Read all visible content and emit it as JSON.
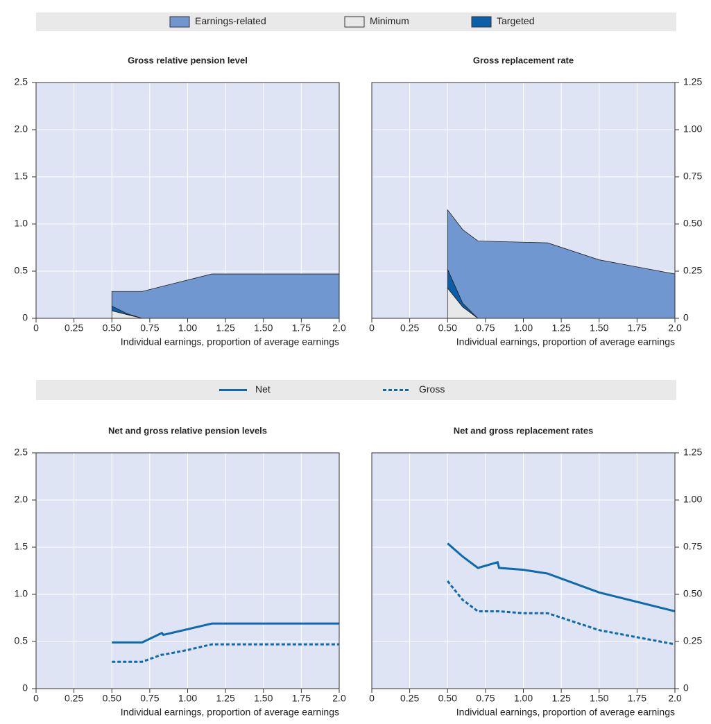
{
  "chart_data": [
    {
      "type": "area",
      "stacked": true,
      "title": "Gross relative pension level",
      "x_label": "Individual earnings, proportion of average earnings",
      "x": [
        0.5,
        0.6,
        0.7,
        1.16,
        1.5,
        2.0
      ],
      "series": [
        {
          "name": "Earnings-related",
          "color": "#7097d0",
          "values": [
            0.155,
            0.235,
            0.285,
            0.47,
            0.47,
            0.47
          ]
        },
        {
          "name": "Minimum",
          "color": "#e8e8e8",
          "values": [
            0.08,
            0.04,
            0,
            0,
            0,
            0
          ]
        },
        {
          "name": "Targeted",
          "color": "#0a5fa8",
          "values": [
            0.05,
            0.01,
            0,
            0,
            0,
            0
          ]
        }
      ],
      "xlim": [
        0,
        2.0
      ],
      "xticks": [
        0,
        0.25,
        {
          "value": 0.5,
          "label": "0.50"
        },
        0.75,
        {
          "value": 1.0,
          "label": "1.00"
        },
        1.25,
        {
          "value": 1.5,
          "label": "1.50"
        },
        1.75,
        {
          "value": 2.0,
          "label": "2.0"
        }
      ],
      "ylim": [
        0,
        2.5
      ],
      "yticks": [
        0,
        0.5,
        {
          "value": 1.0,
          "label": "1.0"
        },
        1.5,
        {
          "value": 2.0,
          "label": "2.0"
        },
        2.5
      ],
      "y_axis_position": "left",
      "grid": true
    },
    {
      "type": "area",
      "stacked": true,
      "title": "Gross replacement rate",
      "x_label": "Individual earnings, proportion of average earnings",
      "x": [
        0.5,
        0.6,
        0.7,
        1.16,
        1.5,
        2.0
      ],
      "series": [
        {
          "name": "Earnings-related",
          "color": "#7097d0",
          "values": [
            0.315,
            0.39,
            0.41,
            0.4,
            0.31,
            0.235
          ]
        },
        {
          "name": "Minimum",
          "color": "#e8e8e8",
          "values": [
            0.16,
            0.06,
            0,
            0,
            0,
            0
          ]
        },
        {
          "name": "Targeted",
          "color": "#0a5fa8",
          "values": [
            0.1,
            0.02,
            0,
            0,
            0,
            0
          ]
        }
      ],
      "xlim": [
        0,
        2.0
      ],
      "xticks": [
        0,
        0.25,
        {
          "value": 0.5,
          "label": "0.50"
        },
        0.75,
        {
          "value": 1.0,
          "label": "1.00"
        },
        1.25,
        {
          "value": 1.5,
          "label": "1.50"
        },
        1.75,
        {
          "value": 2.0,
          "label": "2.0"
        }
      ],
      "ylim": [
        0,
        1.25
      ],
      "yticks": [
        0,
        0.25,
        {
          "value": 0.5,
          "label": "0.50"
        },
        0.75,
        {
          "value": 1.0,
          "label": "1.00"
        },
        1.25
      ],
      "y_axis_position": "right",
      "grid": true
    },
    {
      "type": "line",
      "title": "Net and gross relative pension levels",
      "x_label": "Individual earnings, proportion of average earnings",
      "x": [
        0.5,
        0.7,
        0.83,
        0.84,
        1.0,
        1.16,
        2.0
      ],
      "series": [
        {
          "name": "Net",
          "color": "#0b6ab0",
          "line_style": "solid",
          "values": [
            0.49,
            0.49,
            0.59,
            0.57,
            0.63,
            0.69,
            0.69
          ]
        },
        {
          "name": "Gross",
          "color": "#0b6ab0",
          "line_style": "dashed",
          "values": [
            0.285,
            0.285,
            0.36,
            0.36,
            0.41,
            0.47,
            0.47
          ]
        }
      ],
      "xlim": [
        0,
        2.0
      ],
      "xticks": [
        0,
        0.25,
        {
          "value": 0.5,
          "label": "0.50"
        },
        0.75,
        {
          "value": 1.0,
          "label": "1.00"
        },
        1.25,
        {
          "value": 1.5,
          "label": "1.50"
        },
        1.75,
        {
          "value": 2.0,
          "label": "2.0"
        }
      ],
      "ylim": [
        0,
        2.5
      ],
      "yticks": [
        0,
        0.5,
        {
          "value": 1.0,
          "label": "1.0"
        },
        1.5,
        {
          "value": 2.0,
          "label": "2.0"
        },
        2.5
      ],
      "y_axis_position": "left",
      "grid": true
    },
    {
      "type": "line",
      "title": "Net and gross replacement rates",
      "x_label": "Individual earnings, proportion of average earnings",
      "x": [
        0.5,
        0.6,
        0.7,
        0.83,
        0.84,
        1.0,
        1.16,
        1.5,
        2.0
      ],
      "series": [
        {
          "name": "Net",
          "color": "#0b6ab0",
          "line_style": "solid",
          "values": [
            0.77,
            0.7,
            0.64,
            0.67,
            0.64,
            0.63,
            0.61,
            0.51,
            0.41
          ]
        },
        {
          "name": "Gross",
          "color": "#0b6ab0",
          "line_style": "dashed",
          "values": [
            0.57,
            0.47,
            0.41,
            0.41,
            0.41,
            0.4,
            0.4,
            0.31,
            0.235
          ]
        }
      ],
      "xlim": [
        0,
        2.0
      ],
      "xticks": [
        0,
        0.25,
        {
          "value": 0.5,
          "label": "0.50"
        },
        0.75,
        {
          "value": 1.0,
          "label": "1.00"
        },
        1.25,
        {
          "value": 1.5,
          "label": "1.50"
        },
        1.75,
        {
          "value": 2.0,
          "label": "2.0"
        }
      ],
      "ylim": [
        0,
        1.25
      ],
      "yticks": [
        0,
        0.25,
        {
          "value": 0.5,
          "label": "0.50"
        },
        0.75,
        {
          "value": 1.0,
          "label": "1.00"
        },
        1.25
      ],
      "y_axis_position": "right",
      "grid": true
    }
  ]
}
